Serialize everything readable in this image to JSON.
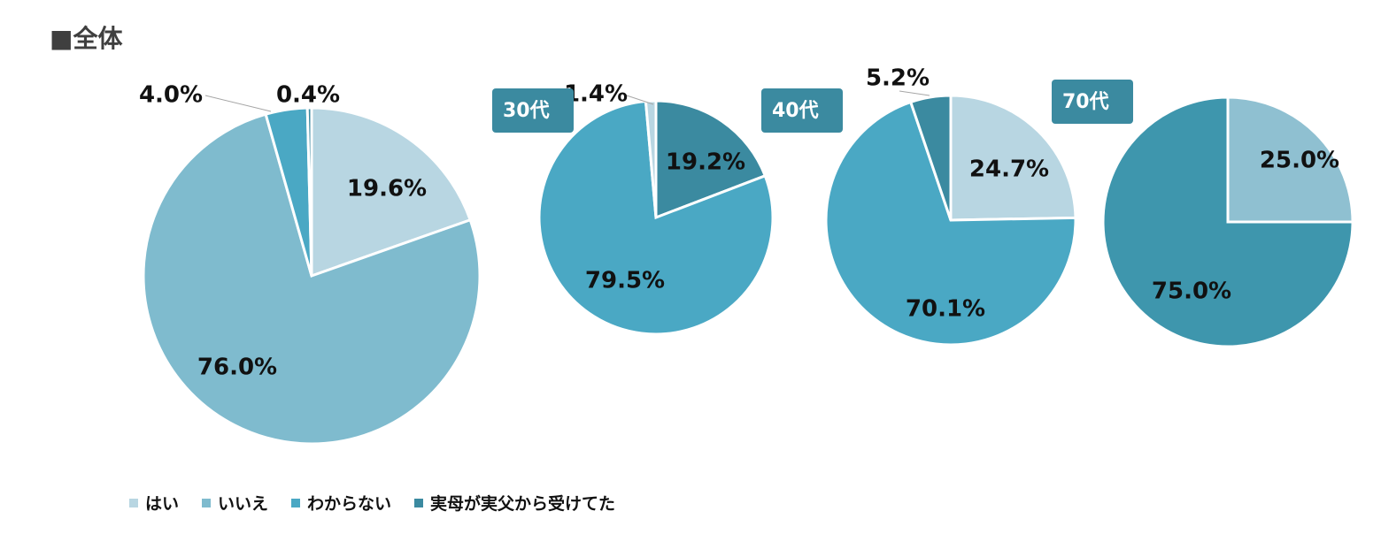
{
  "title": "■全体",
  "legend": [
    {
      "label": "はい",
      "color": "#b8d6e2"
    },
    {
      "label": "いいえ",
      "color": "#7fbbce"
    },
    {
      "label": "わからない",
      "color": "#4aa8c4"
    },
    {
      "label": "実母が実父から受けてた",
      "color": "#3b8aa0"
    }
  ],
  "chart_data": [
    {
      "type": "pie",
      "title": "",
      "categories": [
        "はい",
        "いいえ",
        "わからない",
        "実母が実父から受けてた"
      ],
      "values": [
        19.6,
        76.0,
        4.0,
        0.4
      ],
      "labels": [
        "19.6%",
        "76.0%",
        "4.0%",
        "0.4%"
      ],
      "colors": [
        "#b8d6e2",
        "#7fbbce",
        "#4aa8c4",
        "#3b8aa0"
      ]
    },
    {
      "type": "pie",
      "title": "30代",
      "categories": [
        "実母が実父から受けてた",
        "わからない",
        "はい"
      ],
      "values": [
        19.2,
        79.5,
        1.4
      ],
      "labels": [
        "19.2%",
        "79.5%",
        "1.4%"
      ],
      "colors": [
        "#3b8aa0",
        "#4aa8c4",
        "#b8d6e2"
      ]
    },
    {
      "type": "pie",
      "title": "40代",
      "categories": [
        "はい",
        "わからない",
        "実母が実父から受けてた"
      ],
      "values": [
        24.7,
        70.1,
        5.2
      ],
      "labels": [
        "24.7%",
        "70.1%",
        "5.2%"
      ],
      "colors": [
        "#b8d6e2",
        "#4aa8c4",
        "#3b8aa0"
      ]
    },
    {
      "type": "pie",
      "title": "70代",
      "categories": [
        "はい",
        "実母が実父から受けてた"
      ],
      "values": [
        25.0,
        75.0
      ],
      "labels": [
        "25.0%",
        "75.0%"
      ],
      "colors": [
        "#8fc0d1",
        "#3e96ad"
      ]
    }
  ]
}
